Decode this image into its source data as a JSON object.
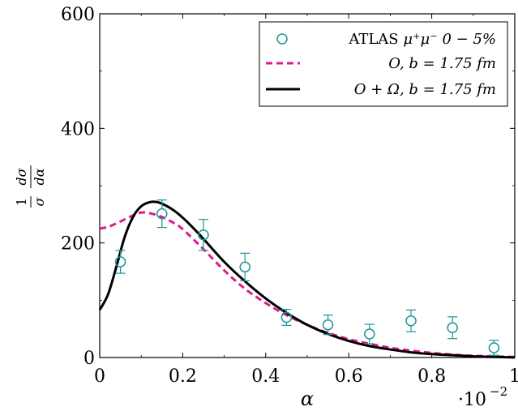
{
  "chart_data": {
    "type": "line",
    "xlabel": "α",
    "ylabel": {
      "numerator": "1",
      "denominator": "σ",
      "derivative_numerator": "dσ",
      "derivative_denominator": "dα"
    },
    "xlim": [
      0,
      1
    ],
    "ylim": [
      0,
      600
    ],
    "x_ticks": [
      "0",
      "0.2",
      "0.4",
      "0.6",
      "0.8",
      "1"
    ],
    "y_ticks": [
      "0",
      "200",
      "400",
      "600"
    ],
    "x_multiplier": "·10",
    "x_multiplier_exponent": "−2",
    "legend_position": "top-right",
    "grid": false,
    "colors": {
      "atlas": "#1a9696",
      "dashed": "#e0198c",
      "solid": "#000000"
    },
    "series": [
      {
        "name": "ATLAS μ⁺μ⁻ 0 − 5%",
        "kind": "scatter",
        "x": [
          0.05,
          0.15,
          0.25,
          0.35,
          0.45,
          0.55,
          0.65,
          0.75,
          0.85,
          0.95
        ],
        "y": [
          167,
          251,
          214,
          158,
          70,
          57,
          41,
          64,
          52,
          17
        ],
        "err": [
          20,
          24,
          27,
          24,
          14,
          17,
          17,
          19,
          19,
          13
        ]
      },
      {
        "name": "O, b = 1.75 fm",
        "kind": "dashed",
        "x": [
          0,
          0.02,
          0.04,
          0.06,
          0.08,
          0.1,
          0.12,
          0.14,
          0.16,
          0.18,
          0.2,
          0.25,
          0.3,
          0.35,
          0.4,
          0.45,
          0.5,
          0.55,
          0.6,
          0.65,
          0.7,
          0.75,
          0.8,
          0.85,
          0.9,
          0.95,
          1.0
        ],
        "y": [
          225,
          228,
          234,
          241,
          248,
          253,
          252,
          248,
          242,
          234,
          224,
          189,
          152,
          120,
          95,
          74,
          57,
          43,
          32,
          24,
          17,
          12,
          8,
          5,
          3,
          2,
          1
        ]
      },
      {
        "name": "O + Ω, b = 1.75 fm",
        "kind": "solid",
        "x": [
          0,
          0.02,
          0.04,
          0.06,
          0.08,
          0.1,
          0.12,
          0.14,
          0.16,
          0.18,
          0.2,
          0.22,
          0.25,
          0.3,
          0.35,
          0.4,
          0.45,
          0.5,
          0.55,
          0.6,
          0.65,
          0.7,
          0.75,
          0.8,
          0.85,
          0.9,
          0.95,
          1.0
        ],
        "y": [
          83,
          110,
          158,
          210,
          245,
          264,
          271,
          271,
          265,
          256,
          244,
          230,
          207,
          167,
          133,
          103,
          78,
          57,
          41,
          29,
          20,
          14,
          9,
          6,
          4,
          2,
          1,
          0
        ]
      }
    ],
    "legend_labels": [
      {
        "id": "atlas",
        "prefix": "ATLAS ",
        "math": "μ⁺μ⁻ 0 − 5%"
      },
      {
        "id": "dashed",
        "prefix": "",
        "math": "O, b = 1.75 fm"
      },
      {
        "id": "solid",
        "prefix": "",
        "math": "O + Ω, b = 1.75 fm"
      }
    ]
  }
}
